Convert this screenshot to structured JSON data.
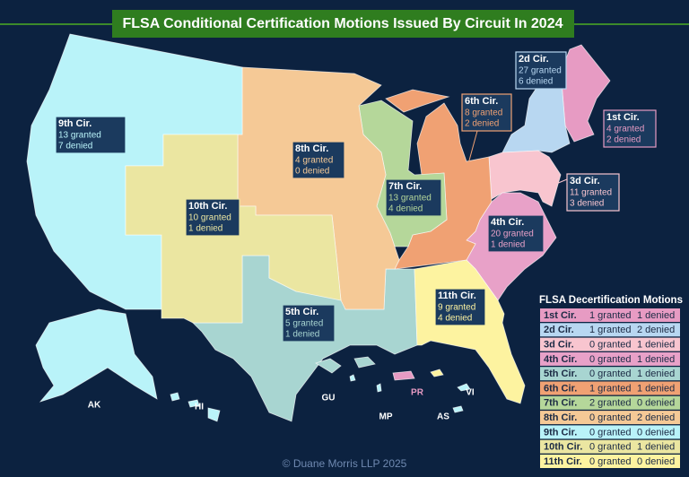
{
  "title": "FLSA Conditional Certification Motions Issued By Circuit In 2024",
  "circuits": [
    {
      "label": "1st Cir.",
      "granted": "4 granted",
      "denied": "2 denied"
    },
    {
      "label": "2d Cir.",
      "granted": "27 granted",
      "denied": "6 denied"
    },
    {
      "label": "3d Cir.",
      "granted": "11 granted",
      "denied": "3 denied"
    },
    {
      "label": "4th Cir.",
      "granted": "20 granted",
      "denied": "1 denied"
    },
    {
      "label": "5th Cir.",
      "granted": "5 granted",
      "denied": "1 denied"
    },
    {
      "label": "6th Cir.",
      "granted": "8 granted",
      "denied": "2 denied"
    },
    {
      "label": "7th Cir.",
      "granted": "13 granted",
      "denied": "4 denied"
    },
    {
      "label": "8th Cir.",
      "granted": "4 granted",
      "denied": "0 denied"
    },
    {
      "label": "9th Cir.",
      "granted": "13 granted",
      "denied": "7 denied"
    },
    {
      "label": "10th Cir.",
      "granted": "10 granted",
      "denied": "1 denied"
    },
    {
      "label": "11th Cir.",
      "granted": "9 granted",
      "denied": "4 denied"
    }
  ],
  "territories": [
    "AK",
    "HI",
    "GU",
    "MP",
    "PR",
    "AS",
    "VI"
  ],
  "decertification": {
    "title": "FLSA Decertification Motions",
    "rows": [
      [
        "1st Cir.",
        "1 granted",
        "1 denied"
      ],
      [
        "2d Cir.",
        "1 granted",
        "2 denied"
      ],
      [
        "3d Cir.",
        "0 granted",
        "1 denied"
      ],
      [
        "4th Cir.",
        "0 granted",
        "1 denied"
      ],
      [
        "5th Cir.",
        "0 granted",
        "1 denied"
      ],
      [
        "6th Cir.",
        "1 granted",
        "1 denied"
      ],
      [
        "7th Cir.",
        "2 granted",
        "0 denied"
      ],
      [
        "8th Cir.",
        "0 granted",
        "2 denied"
      ],
      [
        "9th Cir.",
        "0 granted",
        "0 denied"
      ],
      [
        "10th Cir.",
        "0 granted",
        "1 denied"
      ],
      [
        "11th Cir.",
        "0 granted",
        "0 denied"
      ]
    ]
  },
  "footer": "© Duane Morris LLP 2025"
}
